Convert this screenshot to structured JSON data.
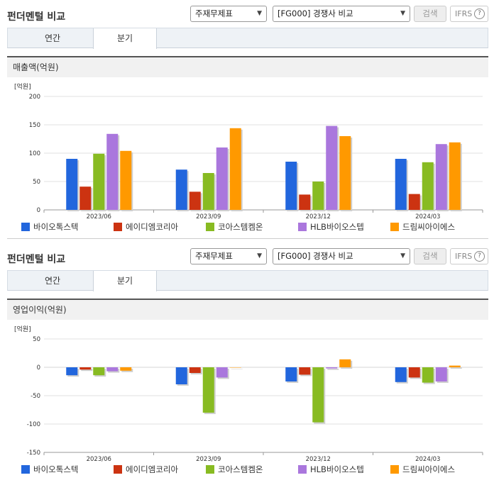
{
  "panels": [
    {
      "title": "펀더멘털 비교",
      "select1": "주재무제표",
      "select2": "[FG000] 경쟁사 비교",
      "search_label": "검색",
      "ifrs_label": "IFRS",
      "ifrs_help": "?",
      "tabs": [
        {
          "label": "연간",
          "active": false
        },
        {
          "label": "분기",
          "active": true
        }
      ],
      "section_title": "매출액(억원)",
      "unit_label": "[억원]"
    },
    {
      "title": "펀더멘털 비교",
      "select1": "주재무제표",
      "select2": "[FG000] 경쟁사 비교",
      "search_label": "검색",
      "ifrs_label": "IFRS",
      "ifrs_help": "?",
      "tabs": [
        {
          "label": "연간",
          "active": false
        },
        {
          "label": "분기",
          "active": true
        }
      ],
      "section_title": "영업이익(억원)",
      "unit_label": "[억원]"
    }
  ],
  "colors": {
    "바이오톡스텍": "#2266dd",
    "에이디엠코리아": "#cc3311",
    "코아스템켐온": "#88bb22",
    "HLB바이오스텝": "#aa77dd",
    "드림씨아이에스": "#ff9900"
  },
  "chart_data": [
    {
      "type": "bar",
      "title": "매출액(억원)",
      "ylabel": "[억원]",
      "categories": [
        "2023/06",
        "2023/09",
        "2023/12",
        "2024/03"
      ],
      "ylim": [
        0,
        200
      ],
      "yticks": [
        0,
        50,
        100,
        150,
        200
      ],
      "legend_position": "bottom",
      "series": [
        {
          "name": "바이오톡스텍",
          "values": [
            90,
            71,
            85,
            90
          ]
        },
        {
          "name": "에이디엠코리아",
          "values": [
            41,
            32,
            27,
            28
          ]
        },
        {
          "name": "코아스템켐온",
          "values": [
            99,
            65,
            50,
            84
          ]
        },
        {
          "name": "HLB바이오스텝",
          "values": [
            134,
            110,
            148,
            116
          ]
        },
        {
          "name": "드림씨아이에스",
          "values": [
            104,
            144,
            130,
            119
          ]
        }
      ]
    },
    {
      "type": "bar",
      "title": "영업이익(억원)",
      "ylabel": "[억원]",
      "categories": [
        "2023/06",
        "2023/09",
        "2023/12",
        "2024/03"
      ],
      "ylim": [
        -150,
        50
      ],
      "yticks": [
        -150,
        -100,
        -50,
        0,
        50
      ],
      "legend_position": "bottom",
      "series": [
        {
          "name": "바이오톡스텍",
          "values": [
            -14,
            -30,
            -25,
            -26
          ]
        },
        {
          "name": "에이디엠코리아",
          "values": [
            -4,
            -10,
            -13,
            -18
          ]
        },
        {
          "name": "코아스템켐온",
          "values": [
            -14,
            -80,
            -97,
            -27
          ]
        },
        {
          "name": "HLB바이오스텝",
          "values": [
            -7,
            -18,
            -2,
            -25
          ]
        },
        {
          "name": "드림씨아이에스",
          "values": [
            -6,
            0,
            14,
            3
          ]
        }
      ]
    }
  ]
}
